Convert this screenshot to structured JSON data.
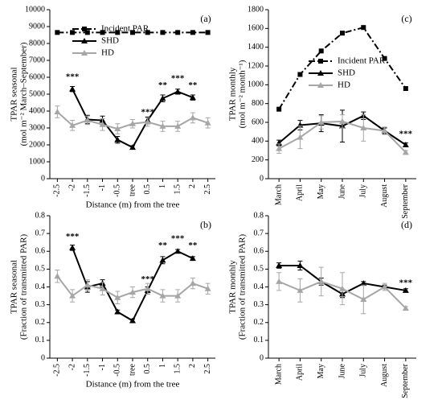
{
  "chart_data": [
    {
      "type": "line",
      "label": "(a)",
      "xlabel": "Distance (m) from the tree",
      "ylabel": [
        "TPAR seasonal",
        "(mol m⁻² March–September)"
      ],
      "categories": [
        "-2.5",
        "-2",
        "-1.5",
        "-1",
        "-0.5",
        "tree",
        "0.5",
        "1",
        "1.5",
        "2",
        "2.5"
      ],
      "ylim": [
        0,
        10000
      ],
      "yticks": [
        0,
        1000,
        2000,
        3000,
        4000,
        5000,
        6000,
        7000,
        8000,
        9000,
        10000
      ],
      "legend": "upper left",
      "series": [
        {
          "name": "Incident PAR",
          "color": "#000000",
          "linestyle": "dashdot",
          "marker": "square",
          "values": [
            8650,
            8650,
            8650,
            8650,
            8650,
            8650,
            8650,
            8650,
            8650,
            8650,
            8650
          ]
        },
        {
          "name": "SHD",
          "color": "#000000",
          "linestyle": "solid",
          "marker": "triangle",
          "values": [
            null,
            5300,
            3500,
            3450,
            2300,
            1850,
            3450,
            4750,
            5150,
            4800,
            null
          ],
          "errors": [
            null,
            150,
            250,
            250,
            200,
            100,
            200,
            200,
            150,
            150,
            null
          ]
        },
        {
          "name": "HD",
          "color": "#a6a6a6",
          "linestyle": "solid",
          "marker": "triangle",
          "values": [
            3950,
            3150,
            3450,
            3200,
            2950,
            3250,
            3350,
            3100,
            3100,
            3600,
            3300
          ],
          "errors": [
            350,
            300,
            250,
            350,
            300,
            250,
            250,
            300,
            300,
            300,
            300
          ]
        }
      ],
      "annotations": [
        {
          "text": "***",
          "category": "-2",
          "y": 6000
        },
        {
          "text": "***",
          "category": "0.5",
          "y": 3900
        },
        {
          "text": "**",
          "category": "1",
          "y": 5500
        },
        {
          "text": "***",
          "category": "1.5",
          "y": 5900
        },
        {
          "text": "**",
          "category": "2",
          "y": 5500
        }
      ]
    },
    {
      "type": "line",
      "label": "(c)",
      "ylabel": [
        "TPAR monthly",
        "(mol m⁻² month⁻¹)"
      ],
      "categories": [
        "March",
        "April",
        "May",
        "June",
        "July",
        "August",
        "September"
      ],
      "ylim": [
        0,
        1800
      ],
      "yticks": [
        0,
        200,
        400,
        600,
        800,
        1000,
        1200,
        1400,
        1600,
        1800
      ],
      "legend": "center right",
      "series": [
        {
          "name": "Incident PAR",
          "color": "#000000",
          "linestyle": "dashdot",
          "marker": "square",
          "values": [
            740,
            1110,
            1360,
            1550,
            1610,
            1280,
            960
          ]
        },
        {
          "name": "SHD",
          "color": "#000000",
          "linestyle": "solid",
          "marker": "triangle",
          "values": [
            380,
            570,
            590,
            560,
            670,
            510,
            360
          ],
          "errors": [
            30,
            50,
            90,
            170,
            40,
            30,
            20
          ]
        },
        {
          "name": "HD",
          "color": "#a6a6a6",
          "linestyle": "solid",
          "marker": "triangle",
          "values": [
            320,
            440,
            600,
            610,
            540,
            510,
            280
          ],
          "errors": [
            50,
            120,
            70,
            70,
            140,
            40,
            20
          ]
        }
      ],
      "annotations": [
        {
          "text": "***",
          "category": "September",
          "y": 470
        }
      ]
    },
    {
      "type": "line",
      "label": "(b)",
      "xlabel": "Distance (m) from the tree",
      "ylabel": [
        "TPAR seasonal",
        "(Fraction of transmitted PAR)"
      ],
      "categories": [
        "-2.5",
        "-2",
        "-1.5",
        "-1",
        "-0.5",
        "tree",
        "0.5",
        "1",
        "1.5",
        "2",
        "2.5"
      ],
      "ylim": [
        0,
        0.8
      ],
      "yticks": [
        0,
        0.1,
        0.2,
        0.3,
        0.4,
        0.5,
        0.6,
        0.7,
        0.8
      ],
      "series": [
        {
          "name": "SHD",
          "color": "#000000",
          "linestyle": "solid",
          "marker": "triangle",
          "values": [
            null,
            0.62,
            0.4,
            0.42,
            0.26,
            0.21,
            0.38,
            0.55,
            0.6,
            0.56,
            null
          ],
          "errors": [
            null,
            0.015,
            0.03,
            0.02,
            0.01,
            0.01,
            0.02,
            0.02,
            0.01,
            0.01,
            null
          ]
        },
        {
          "name": "HD",
          "color": "#a6a6a6",
          "linestyle": "solid",
          "marker": "triangle",
          "values": [
            0.46,
            0.35,
            0.41,
            0.39,
            0.34,
            0.37,
            0.39,
            0.35,
            0.35,
            0.42,
            0.39
          ],
          "errors": [
            0.035,
            0.035,
            0.03,
            0.035,
            0.035,
            0.03,
            0.03,
            0.035,
            0.035,
            0.03,
            0.03
          ]
        }
      ],
      "annotations": [
        {
          "text": "***",
          "category": "-2",
          "y": 0.68
        },
        {
          "text": "***",
          "category": "0.5",
          "y": 0.44
        },
        {
          "text": "**",
          "category": "1",
          "y": 0.63
        },
        {
          "text": "***",
          "category": "1.5",
          "y": 0.67
        },
        {
          "text": "**",
          "category": "2",
          "y": 0.63
        }
      ]
    },
    {
      "type": "line",
      "label": "(d)",
      "ylabel": [
        "TPAR monthly",
        "(Fraction of transmitted PAR)"
      ],
      "categories": [
        "March",
        "April",
        "May",
        "June",
        "July",
        "August",
        "September"
      ],
      "ylim": [
        0,
        0.8
      ],
      "yticks": [
        0,
        0.1,
        0.2,
        0.3,
        0.4,
        0.5,
        0.6,
        0.7,
        0.8
      ],
      "series": [
        {
          "name": "SHD",
          "color": "#000000",
          "linestyle": "solid",
          "marker": "triangle",
          "values": [
            0.52,
            0.52,
            0.43,
            0.36,
            0.42,
            0.4,
            0.38
          ],
          "errors": [
            0.015,
            0.025,
            0.02,
            0.02,
            0.01,
            0.01,
            0.01
          ]
        },
        {
          "name": "HD",
          "color": "#a6a6a6",
          "linestyle": "solid",
          "marker": "triangle",
          "values": [
            0.43,
            0.38,
            0.43,
            0.39,
            0.33,
            0.4,
            0.28
          ],
          "errors": [
            0.05,
            0.065,
            0.08,
            0.09,
            0.08,
            0.02,
            0.01
          ]
        }
      ],
      "annotations": [
        {
          "text": "***",
          "category": "September",
          "y": 0.42
        }
      ]
    }
  ]
}
